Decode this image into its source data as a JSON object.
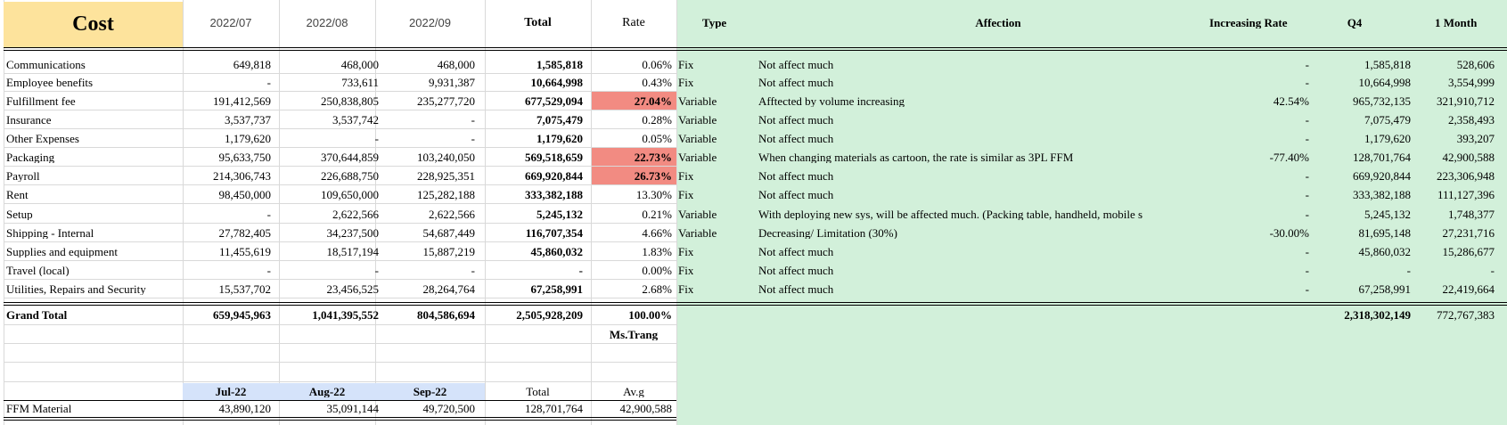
{
  "header": {
    "cost": "Cost",
    "months": [
      "2022/07",
      "2022/08",
      "2022/09"
    ],
    "total": "Total",
    "rate": "Rate",
    "type": "Type",
    "affection": "Affection",
    "increasing_rate": "Increasing Rate",
    "q4": "Q4",
    "one_month": "1 Month"
  },
  "rows": [
    {
      "name": "Communications",
      "m1": "649,818",
      "m2": "468,000",
      "m3": "468,000",
      "total": "1,585,818",
      "rate": "0.06%",
      "type": "Fix",
      "affection": "Not affect much",
      "inc": "-",
      "q4": "1,585,818",
      "month": "528,606",
      "highlight": false
    },
    {
      "name": "Employee benefits",
      "m1": "-",
      "m2": "733,611",
      "m3": "9,931,387",
      "total": "10,664,998",
      "rate": "0.43%",
      "type": "Fix",
      "affection": "Not affect much",
      "inc": "-",
      "q4": "10,664,998",
      "month": "3,554,999",
      "highlight": false
    },
    {
      "name": "Fulfillment fee",
      "m1": "191,412,569",
      "m2": "250,838,805",
      "m3": "235,277,720",
      "total": "677,529,094",
      "rate": "27.04%",
      "type": "Variable",
      "affection": "Afftected by volume increasing",
      "inc": "42.54%",
      "q4": "965,732,135",
      "month": "321,910,712",
      "highlight": true
    },
    {
      "name": "Insurance",
      "m1": "3,537,737",
      "m2": "3,537,742",
      "m3": "-",
      "total": "7,075,479",
      "rate": "0.28%",
      "type": "Variable",
      "affection": "Not affect much",
      "inc": "-",
      "q4": "7,075,479",
      "month": "2,358,493",
      "highlight": false
    },
    {
      "name": "Other Expenses",
      "m1": "1,179,620",
      "m2": "-",
      "m3": "-",
      "total": "1,179,620",
      "rate": "0.05%",
      "type": "Variable",
      "affection": "Not affect much",
      "inc": "-",
      "q4": "1,179,620",
      "month": "393,207",
      "highlight": false
    },
    {
      "name": "Packaging",
      "m1": "95,633,750",
      "m2": "370,644,859",
      "m3": "103,240,050",
      "total": "569,518,659",
      "rate": "22.73%",
      "type": "Variable",
      "affection": "When changing materials as cartoon, the rate is similar as 3PL FFM",
      "inc": "-77.40%",
      "q4": "128,701,764",
      "month": "42,900,588",
      "highlight": true
    },
    {
      "name": "Payroll",
      "m1": "214,306,743",
      "m2": "226,688,750",
      "m3": "228,925,351",
      "total": "669,920,844",
      "rate": "26.73%",
      "type": "Fix",
      "affection": "Not affect much",
      "inc": "-",
      "q4": "669,920,844",
      "month": "223,306,948",
      "highlight": true
    },
    {
      "name": "Rent",
      "m1": "98,450,000",
      "m2": "109,650,000",
      "m3": "125,282,188",
      "total": "333,382,188",
      "rate": "13.30%",
      "type": "Fix",
      "affection": "Not affect much",
      "inc": "-",
      "q4": "333,382,188",
      "month": "111,127,396",
      "highlight": false
    },
    {
      "name": "Setup",
      "m1": "-",
      "m2": "2,622,566",
      "m3": "2,622,566",
      "total": "5,245,132",
      "rate": "0.21%",
      "type": "Variable",
      "affection": "With deploying new sys, will be affected much. (Packing table, handheld, mobile s",
      "inc": "-",
      "q4": "5,245,132",
      "month": "1,748,377",
      "highlight": false
    },
    {
      "name": "Shipping - Internal",
      "m1": "27,782,405",
      "m2": "34,237,500",
      "m3": "54,687,449",
      "total": "116,707,354",
      "rate": "4.66%",
      "type": "Variable",
      "affection": "Decreasing/ Limitation (30%)",
      "inc": "-30.00%",
      "q4": "81,695,148",
      "month": "27,231,716",
      "highlight": false
    },
    {
      "name": "Supplies and equipment",
      "m1": "11,455,619",
      "m2": "18,517,194",
      "m3": "15,887,219",
      "total": "45,860,032",
      "rate": "1.83%",
      "type": "Fix",
      "affection": "Not affect much",
      "inc": "-",
      "q4": "45,860,032",
      "month": "15,286,677",
      "highlight": false
    },
    {
      "name": "Travel (local)",
      "m1": "-",
      "m2": "-",
      "m3": "-",
      "total": "-",
      "rate": "0.00%",
      "type": "Fix",
      "affection": "Not affect much",
      "inc": "-",
      "q4": "-",
      "month": "-",
      "highlight": false
    },
    {
      "name": "Utilities, Repairs and Security",
      "m1": "15,537,702",
      "m2": "23,456,525",
      "m3": "28,264,764",
      "total": "67,258,991",
      "rate": "2.68%",
      "type": "Fix",
      "affection": "Not affect much",
      "inc": "-",
      "q4": "67,258,991",
      "month": "22,419,664",
      "highlight": false
    }
  ],
  "grand_total": {
    "label": "Grand Total",
    "m1": "659,945,963",
    "m2": "1,041,395,552",
    "m3": "804,586,694",
    "total": "2,505,928,209",
    "rate": "100.00%",
    "q4": "2,318,302,149",
    "month": "772,767,383"
  },
  "note": "Ms.Trang",
  "ffm": {
    "headers": [
      "Jul-22",
      "Aug-22",
      "Sep-22",
      "Total",
      "Av.g"
    ],
    "label": "FFM Material",
    "values": [
      "43,890,120",
      "35,091,144",
      "49,720,500",
      "128,701,764",
      "42,900,588"
    ]
  }
}
